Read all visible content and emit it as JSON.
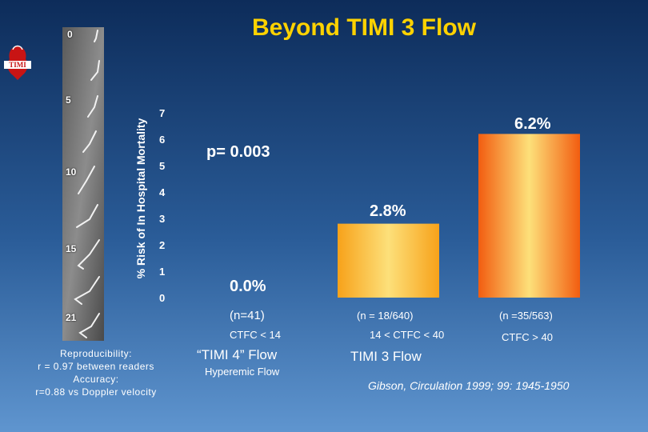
{
  "title": "Beyond TIMI 3 Flow",
  "logo_text": "TIMI",
  "angiogram_frames": [
    "0",
    "5",
    "10",
    "15",
    "21"
  ],
  "reproducibility": {
    "line1": "Reproducibility:",
    "line2": "r = 0.97 between readers",
    "line3": "Accuracy:",
    "line4": "r=0.88 vs Doppler velocity"
  },
  "p_value": "p= 0.003",
  "citation": "Gibson, Circulation 1999; 99: 1945-1950",
  "colors": {
    "title": "#ffd200",
    "bar_orange": "#f7a21a",
    "bar_orange_light": "#fde07a",
    "bar_red_orange": "#f25d10"
  },
  "chart_data": {
    "type": "bar",
    "ylabel": "% Risk of In Hospital Mortality",
    "ylim": [
      0,
      7
    ],
    "yticks": [
      "0",
      "1",
      "2",
      "3",
      "4",
      "5",
      "6",
      "7"
    ],
    "grid": false,
    "categories": [
      {
        "n": "(n=41)",
        "ctfc": "CTFC < 14",
        "flow": "“TIMI 4” Flow",
        "sub": "Hyperemic Flow"
      },
      {
        "n": "(n = 18/640)",
        "ctfc": "14 < CTFC < 40",
        "flow": "TIMI 3 Flow",
        "sub": ""
      },
      {
        "n": "(n =35/563)",
        "ctfc": "CTFC > 40",
        "flow": "",
        "sub": ""
      }
    ],
    "values": [
      0.0,
      2.8,
      6.2
    ],
    "value_labels": [
      "0.0%",
      "2.8%",
      "6.2%"
    ]
  }
}
